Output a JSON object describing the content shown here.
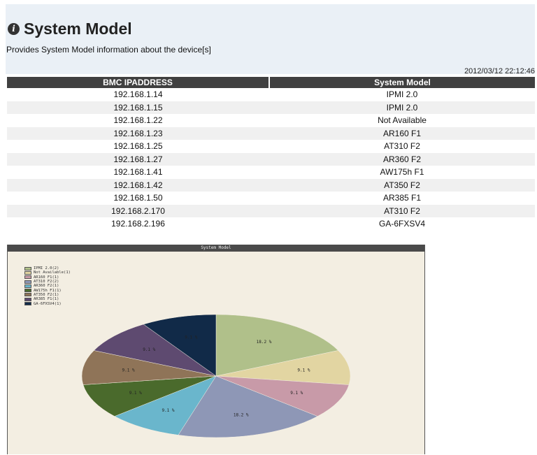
{
  "header": {
    "icon": "info-icon",
    "title": "System Model",
    "subtitle": "Provides System Model information about the device[s]",
    "timestamp": "2012/03/12 22:12:46"
  },
  "table": {
    "columns": [
      "BMC IPADDRESS",
      "System Model"
    ],
    "rows": [
      [
        "192.168.1.14",
        "IPMI 2.0"
      ],
      [
        "192.168.1.15",
        "IPMI 2.0"
      ],
      [
        "192.168.1.22",
        "Not Available"
      ],
      [
        "192.168.1.23",
        "AR160 F1"
      ],
      [
        "192.168.1.25",
        "AT310 F2"
      ],
      [
        "192.168.1.27",
        "AR360 F2"
      ],
      [
        "192.168.1.41",
        "AW175h F1"
      ],
      [
        "192.168.1.42",
        "AT350 F2"
      ],
      [
        "192.168.1.50",
        "AR385 F1"
      ],
      [
        "192.168.2.170",
        "AT310 F2"
      ],
      [
        "192.168.2.196",
        "GA-6FXSV4"
      ]
    ]
  },
  "chart_data": {
    "type": "pie",
    "title": "System Model",
    "legend_position": "top-left",
    "slices": [
      {
        "label": "IPMI 2.0(2)",
        "value": 2,
        "percent_label": "18.2 %",
        "color": "#b0c08a"
      },
      {
        "label": "Not Available(1)",
        "value": 1,
        "percent_label": "9.1 %",
        "color": "#e2d5a2"
      },
      {
        "label": "AR160 F1(1)",
        "value": 1,
        "percent_label": "9.1 %",
        "color": "#c89aa8"
      },
      {
        "label": "AT310 F2(2)",
        "value": 2,
        "percent_label": "18.2 %",
        "color": "#8e97b6"
      },
      {
        "label": "AR360 F2(1)",
        "value": 1,
        "percent_label": "9.1 %",
        "color": "#6ab6cc"
      },
      {
        "label": "AW175h F1(1)",
        "value": 1,
        "percent_label": "9.1 %",
        "color": "#4a6a2c"
      },
      {
        "label": "AT350 F2(1)",
        "value": 1,
        "percent_label": "9.1 %",
        "color": "#8f7458"
      },
      {
        "label": "AR385 F1(1)",
        "value": 1,
        "percent_label": "9.1 %",
        "color": "#5e4a70"
      },
      {
        "label": "GA-6FXSV4(1)",
        "value": 1,
        "percent_label": "9.1 %",
        "color": "#112a48"
      }
    ]
  }
}
